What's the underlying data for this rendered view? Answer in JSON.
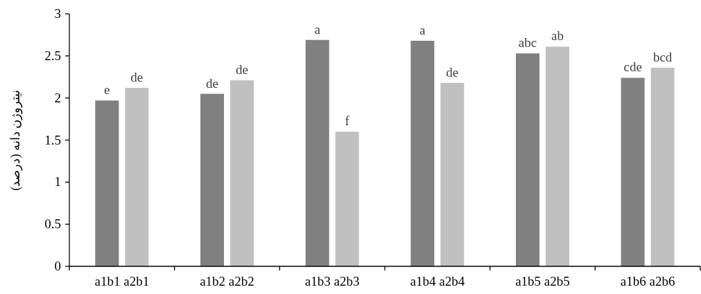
{
  "chart_data": {
    "type": "bar",
    "ylabel": "نیتروژن دانه (درصد)",
    "categories": [
      "a1b1 a2b1",
      "a1b2 a2b2",
      "a1b3 a2b3",
      "a1b4 a2b4",
      "a1b5 a2b5",
      "a1b6 a2b6"
    ],
    "series": [
      {
        "color": "#808080",
        "values": [
          1.97,
          2.05,
          2.69,
          2.68,
          2.53,
          2.24
        ],
        "value_labels": [
          "e",
          "de",
          "a",
          "a",
          "abc",
          "cde"
        ]
      },
      {
        "color": "#c0c0c0",
        "values": [
          2.12,
          2.21,
          1.6,
          2.18,
          2.61,
          2.36
        ],
        "value_labels": [
          "de",
          "de",
          "f",
          "de",
          "ab",
          "bcd"
        ]
      }
    ],
    "ylim": [
      0,
      3
    ],
    "yticks": [
      0,
      0.5,
      1,
      1.5,
      2,
      2.5,
      3
    ],
    "grid": false
  }
}
